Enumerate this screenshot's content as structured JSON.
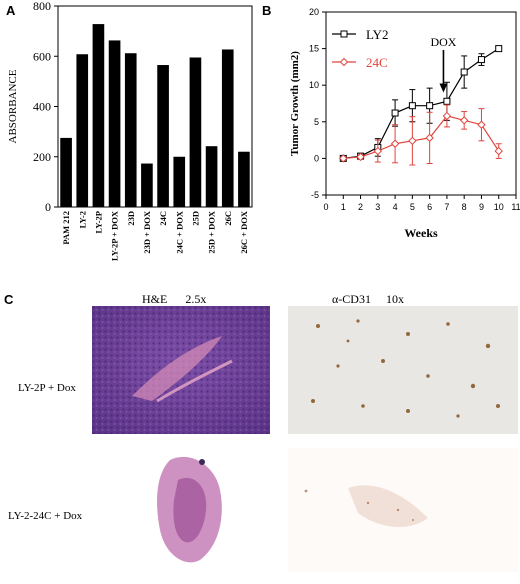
{
  "panels": {
    "a_letter": "A",
    "b_letter": "B",
    "c_letter": "C"
  },
  "chart_data": [
    {
      "type": "bar",
      "ylabel": "ABSORBANCE",
      "xlabel": "",
      "ylim": [
        0,
        800
      ],
      "yticks": [
        0,
        200,
        400,
        600,
        800
      ],
      "categories": [
        "PAM 212",
        "LY-2",
        "LY-2P",
        "LY-2P + DOX",
        "23D",
        "23D + DOX",
        "24C",
        "24C + DOX",
        "25D",
        "25D + DOX",
        "26C",
        "26C + DOX"
      ],
      "values": [
        275,
        608,
        728,
        663,
        612,
        173,
        565,
        200,
        595,
        242,
        627,
        220
      ],
      "bar_color": "#000000"
    },
    {
      "type": "line",
      "xlabel": "Weeks",
      "ylabel": "Tumor Growth (mm2)",
      "xlim": [
        0,
        11
      ],
      "ylim": [
        -5,
        20
      ],
      "xticks": [
        0,
        1,
        2,
        3,
        4,
        5,
        6,
        7,
        8,
        9,
        10,
        11
      ],
      "yticks": [
        -5,
        0,
        5,
        10,
        15,
        20
      ],
      "annotation": {
        "text": "DOX",
        "x": 6.8,
        "y": 9
      },
      "series": [
        {
          "name": "LY2",
          "color": "#000000",
          "marker": "square",
          "x": [
            1,
            2,
            3,
            4,
            5,
            6,
            7,
            8,
            9,
            10
          ],
          "y": [
            0,
            0.3,
            1.5,
            6.2,
            7.2,
            7.2,
            7.8,
            11.8,
            13.5,
            15
          ],
          "err": [
            0,
            0.4,
            1.2,
            1.8,
            2.2,
            2.4,
            2.6,
            2.2,
            0.8,
            0
          ]
        },
        {
          "name": "24C",
          "color": "#e0443c",
          "marker": "diamond",
          "x": [
            1,
            2,
            3,
            4,
            5,
            6,
            7,
            8,
            9,
            10
          ],
          "y": [
            0,
            0.2,
            1,
            2,
            2.4,
            2.8,
            5.8,
            5.2,
            4.6,
            1
          ],
          "err": [
            0,
            0.3,
            1.5,
            2.6,
            3.3,
            3.5,
            1.5,
            1.2,
            2.2,
            1
          ]
        }
      ]
    }
  ],
  "micrographs": {
    "header_he": "H&E      2.5x",
    "header_cd31": "α-CD31     10x",
    "row1_label": "LY-2P + Dox",
    "row2_label": "LY-2-24C + Dox"
  }
}
